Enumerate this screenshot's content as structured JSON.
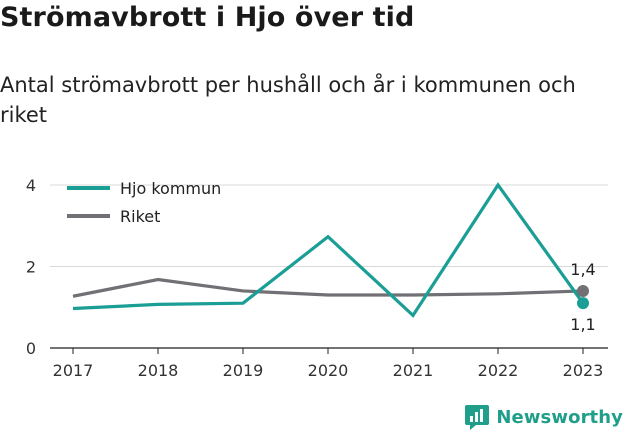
{
  "title": "Strömavbrott i Hjo över tid",
  "subtitle": "Antal strömavbrott per hushåll och år i kommunen och riket",
  "brand": {
    "name": "Newsworthy",
    "color": "#1f9e8a",
    "icon": "newsworthy-logo-icon"
  },
  "chart_data": {
    "type": "line",
    "categories": [
      "2017",
      "2018",
      "2019",
      "2020",
      "2021",
      "2022",
      "2023"
    ],
    "yticks": [
      "0",
      "2",
      "4"
    ],
    "ylim": [
      0,
      4.2
    ],
    "grid": true,
    "legend_position": "top-left",
    "series": [
      {
        "name": "Hjo kommun",
        "color": "#1a9e96",
        "values": [
          0.97,
          1.07,
          1.1,
          2.73,
          0.8,
          4.0,
          1.1
        ],
        "end_label": "1,1"
      },
      {
        "name": "Riket",
        "color": "#707075",
        "values": [
          1.27,
          1.68,
          1.4,
          1.3,
          1.3,
          1.33,
          1.4
        ],
        "end_label": "1,4"
      }
    ]
  }
}
